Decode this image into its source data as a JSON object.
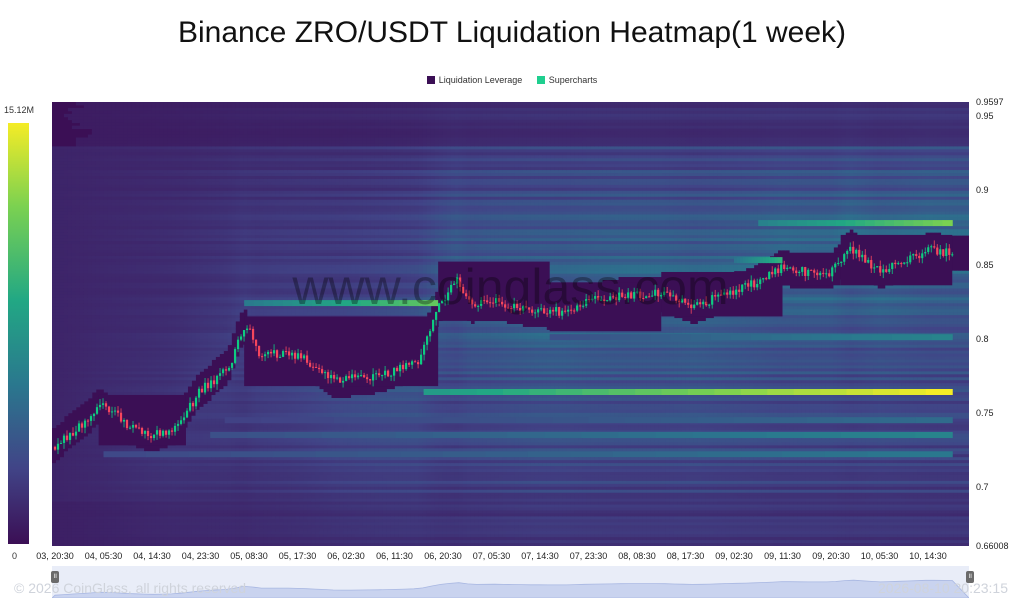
{
  "title": "Binance ZRO/USDT Liquidation Heatmap(1 week)",
  "legend": [
    {
      "label": "Liquidation Leverage",
      "color": "#3b0f55"
    },
    {
      "label": "Supercharts",
      "color": "#1fcf8f"
    }
  ],
  "colorbar": {
    "max_label": "15.12M",
    "min_label": "0"
  },
  "watermark": "www.coinglass.com",
  "footer": {
    "copyright": "© 2026 CoinGlass, all rights reserved",
    "timestamp": "2026-08-10 20:23:15"
  },
  "chart_data": {
    "type": "heatmap",
    "title": "Binance ZRO/USDT Liquidation Heatmap(1 week)",
    "x_tick_labels": [
      "03, 20:30",
      "04, 05:30",
      "04, 14:30",
      "04, 23:30",
      "05, 08:30",
      "05, 17:30",
      "06, 02:30",
      "06, 11:30",
      "06, 20:30",
      "07, 05:30",
      "07, 14:30",
      "07, 23:30",
      "08, 08:30",
      "08, 17:30",
      "09, 02:30",
      "09, 11:30",
      "09, 20:30",
      "10, 05:30",
      "10, 14:30"
    ],
    "y_tick_labels": [
      "0.9597",
      "0.95",
      "0.9",
      "0.85",
      "0.8",
      "0.75",
      "0.7",
      "0.66008"
    ],
    "y_range": [
      0.66008,
      0.9597
    ],
    "colorscale": [
      "#3b0f55",
      "#414487",
      "#2a788e",
      "#22a884",
      "#7ad151",
      "#f5ec26"
    ],
    "value_range": [
      0,
      15120000
    ],
    "price_path": [
      {
        "x": 0,
        "price": 0.727
      },
      {
        "x": 1,
        "price": 0.755
      },
      {
        "x": 1.5,
        "price": 0.742
      },
      {
        "x": 2,
        "price": 0.735
      },
      {
        "x": 2.5,
        "price": 0.74
      },
      {
        "x": 3,
        "price": 0.765
      },
      {
        "x": 3.6,
        "price": 0.78
      },
      {
        "x": 3.8,
        "price": 0.8
      },
      {
        "x": 3.95,
        "price": 0.81
      },
      {
        "x": 4.2,
        "price": 0.79
      },
      {
        "x": 4.8,
        "price": 0.79
      },
      {
        "x": 5.2,
        "price": 0.785
      },
      {
        "x": 5.8,
        "price": 0.772
      },
      {
        "x": 6.5,
        "price": 0.774
      },
      {
        "x": 7,
        "price": 0.778
      },
      {
        "x": 7.5,
        "price": 0.785
      },
      {
        "x": 7.9,
        "price": 0.82
      },
      {
        "x": 8.3,
        "price": 0.84
      },
      {
        "x": 8.6,
        "price": 0.822
      },
      {
        "x": 9,
        "price": 0.825
      },
      {
        "x": 9.8,
        "price": 0.82
      },
      {
        "x": 10.5,
        "price": 0.818
      },
      {
        "x": 11,
        "price": 0.825
      },
      {
        "x": 11.8,
        "price": 0.83
      },
      {
        "x": 12.5,
        "price": 0.83
      },
      {
        "x": 13.2,
        "price": 0.822
      },
      {
        "x": 13.8,
        "price": 0.83
      },
      {
        "x": 14.5,
        "price": 0.838
      },
      {
        "x": 15,
        "price": 0.848
      },
      {
        "x": 15.5,
        "price": 0.845
      },
      {
        "x": 16,
        "price": 0.845
      },
      {
        "x": 16.4,
        "price": 0.862
      },
      {
        "x": 17,
        "price": 0.845
      },
      {
        "x": 17.5,
        "price": 0.852
      },
      {
        "x": 18,
        "price": 0.86
      },
      {
        "x": 18.5,
        "price": 0.858
      }
    ],
    "liquidation_bands": [
      {
        "price": 0.764,
        "start_x": 7.6,
        "end_x": 18.5,
        "intensity": 1.0
      },
      {
        "price": 0.824,
        "start_x": 3.9,
        "end_x": 7.9,
        "intensity": 0.75
      },
      {
        "price": 0.878,
        "start_x": 14.5,
        "end_x": 18.5,
        "intensity": 0.8
      },
      {
        "price": 0.853,
        "start_x": 14.0,
        "end_x": 15.2,
        "intensity": 0.7
      },
      {
        "price": 0.801,
        "start_x": 10.2,
        "end_x": 18.5,
        "intensity": 0.45
      },
      {
        "price": 0.735,
        "start_x": 3.2,
        "end_x": 18.5,
        "intensity": 0.45
      },
      {
        "price": 0.722,
        "start_x": 1.0,
        "end_x": 18.5,
        "intensity": 0.4
      },
      {
        "price": 0.745,
        "start_x": 3.5,
        "end_x": 18.5,
        "intensity": 0.35
      }
    ]
  }
}
